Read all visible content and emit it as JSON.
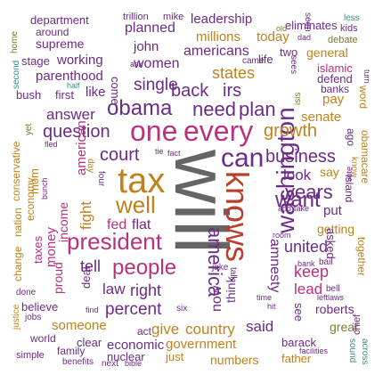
{
  "colors": {
    "purple": "#6b2c85",
    "magenta": "#b9327a",
    "orange": "#c1811a",
    "teal": "#2f8f86",
    "gray": "#656565",
    "olive": "#7d7a2f",
    "red": "#b8402b"
  },
  "words": [
    "will",
    "tax",
    "knows",
    "washington",
    "president",
    "every",
    "one",
    "can",
    "obama",
    "well",
    "people",
    "need",
    "question",
    "answer",
    "plan",
    "growth",
    "business",
    "years",
    "want",
    "back",
    "irs",
    "single",
    "women",
    "states",
    "court",
    "american",
    "percent",
    "right",
    "law",
    "united",
    "keep",
    "lead",
    "amnesty",
    "america",
    "now",
    "think",
    "fight",
    "flat",
    "fed",
    "give",
    "country",
    "said",
    "government",
    "economic",
    "numbers",
    "barack",
    "father",
    "great",
    "roberts",
    "senate",
    "look",
    "say",
    "put",
    "getting",
    "asked",
    "together",
    "working",
    "parenthood",
    "stage",
    "bush",
    "first",
    "like",
    "millions",
    "today",
    "leadership",
    "trillion",
    "mike",
    "eliminates",
    "less",
    "kids",
    "debate",
    "department",
    "around",
    "supreme",
    "planned",
    "john",
    "americans",
    "two",
    "general",
    "islamic",
    "defend",
    "banks",
    "pay",
    "life",
    "come",
    "home",
    "second",
    "half",
    "ask",
    "came",
    "old",
    "dad",
    "seen",
    "sees",
    "turn",
    "isis",
    "word",
    "obamacare",
    "ago",
    "island",
    "conservative",
    "nation",
    "economy",
    "yet",
    "mom",
    "bunch",
    "fled",
    "day",
    "four",
    "income",
    "taxes",
    "money",
    "proud",
    "change",
    "done",
    "believe",
    "jobs",
    "justice",
    "world",
    "simple",
    "family",
    "benefits",
    "next",
    "bible",
    "clear",
    "nuclear",
    "just",
    "someone",
    "act",
    "six",
    "find",
    "tell",
    "deal",
    "jake",
    "talk",
    "see",
    "bank",
    "bail",
    "left",
    "laws",
    "bell",
    "chief",
    "sound",
    "across",
    "facilities",
    "room",
    "add",
    "take",
    "vote",
    "fact",
    "tie",
    "time",
    "hit",
    "know"
  ]
}
